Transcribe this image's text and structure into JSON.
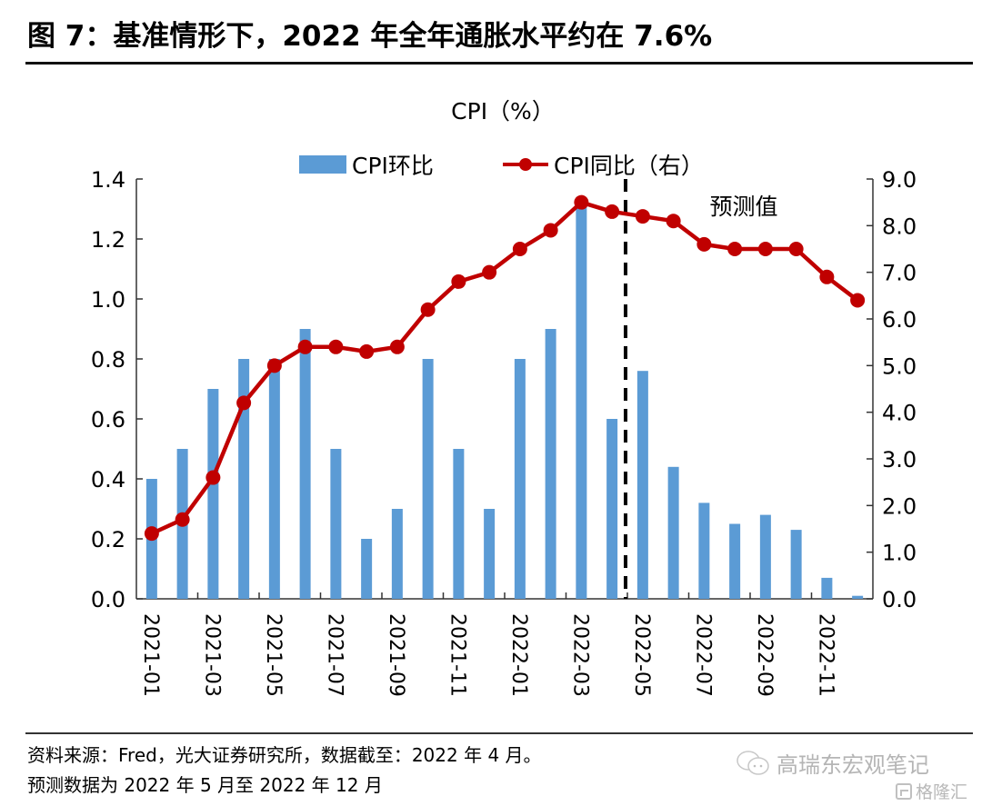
{
  "figure": {
    "title": "图 7：基准情形下，2022 年全年通胀水平约在 7.6%",
    "source_line1": "资料来源：Fred，光大证券研究所，数据截至：2022 年 4 月。",
    "source_line2": "预测数据为 2022 年 5 月至 2022 年 12 月",
    "watermark_account": "高瑞东宏观笔记",
    "watermark_site": "格隆汇"
  },
  "chart_data": {
    "type": "bar+line",
    "title": "CPI（%）",
    "annotation": "预测值",
    "forecast_start": "2022-05",
    "categories": [
      "2021-01",
      "2021-02",
      "2021-03",
      "2021-04",
      "2021-05",
      "2021-06",
      "2021-07",
      "2021-08",
      "2021-09",
      "2021-10",
      "2021-11",
      "2021-12",
      "2022-01",
      "2022-02",
      "2022-03",
      "2022-04",
      "2022-05",
      "2022-06",
      "2022-07",
      "2022-08",
      "2022-09",
      "2022-10",
      "2022-11",
      "2022-12"
    ],
    "x_tick_labels": [
      "2021-01",
      "2021-03",
      "2021-05",
      "2021-07",
      "2021-09",
      "2021-11",
      "2022-01",
      "2022-03",
      "2022-05",
      "2022-07",
      "2022-09",
      "2022-11"
    ],
    "series": [
      {
        "name": "CPI环比",
        "type": "bar",
        "axis": "left",
        "color": "#5b9bd5",
        "values": [
          0.4,
          0.5,
          0.7,
          0.8,
          0.8,
          0.9,
          0.5,
          0.2,
          0.3,
          0.8,
          0.5,
          0.3,
          0.8,
          0.9,
          1.32,
          0.6,
          0.76,
          0.44,
          0.32,
          0.25,
          0.28,
          0.23,
          0.07,
          0.01
        ]
      },
      {
        "name": "CPI同比（右）",
        "type": "line",
        "axis": "right",
        "color": "#c00000",
        "values": [
          1.4,
          1.7,
          2.6,
          4.2,
          5.0,
          5.4,
          5.4,
          5.3,
          5.4,
          6.2,
          6.8,
          7.0,
          7.5,
          7.9,
          8.5,
          8.3,
          8.2,
          8.1,
          7.6,
          7.5,
          7.5,
          7.5,
          6.9,
          6.4
        ]
      }
    ],
    "y_left": {
      "min": 0.0,
      "max": 1.4,
      "ticks": [
        "0.0",
        "0.2",
        "0.4",
        "0.6",
        "0.8",
        "1.0",
        "1.2",
        "1.4"
      ]
    },
    "y_right": {
      "min": 0.0,
      "max": 9.0,
      "ticks": [
        "0.0",
        "1.0",
        "2.0",
        "3.0",
        "4.0",
        "5.0",
        "6.0",
        "7.0",
        "8.0",
        "9.0"
      ]
    },
    "legend": {
      "placement": "top-center",
      "entries": [
        "CPI环比",
        "CPI同比（右）"
      ]
    },
    "grid": false
  }
}
